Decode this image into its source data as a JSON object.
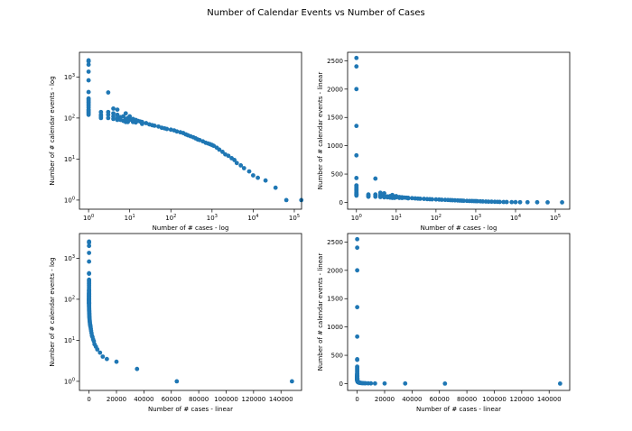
{
  "figure": {
    "title": "Number of Calendar Events  vs Number of Cases"
  },
  "chart_data": [
    {
      "type": "scatter",
      "xscale": "log",
      "yscale": "log",
      "xlabel": "Number of # cases - log",
      "ylabel": "Number of # calendar events - log",
      "xlim": [
        0.6,
        150000
      ],
      "ylim": [
        0.6,
        4000
      ],
      "xticks": [
        {
          "v": 1,
          "b": "10",
          "e": "0"
        },
        {
          "v": 10,
          "b": "10",
          "e": "1"
        },
        {
          "v": 100,
          "b": "10",
          "e": "2"
        },
        {
          "v": 1000,
          "b": "10",
          "e": "3"
        },
        {
          "v": 10000,
          "b": "10",
          "e": "4"
        },
        {
          "v": 100000,
          "b": "10",
          "e": "5"
        }
      ],
      "yticks": [
        {
          "v": 1,
          "b": "10",
          "e": "0"
        },
        {
          "v": 10,
          "b": "10",
          "e": "1"
        },
        {
          "v": 100,
          "b": "10",
          "e": "2"
        },
        {
          "v": 1000,
          "b": "10",
          "e": "3"
        }
      ],
      "points_ref": "points"
    },
    {
      "type": "scatter",
      "xscale": "log",
      "yscale": "linear",
      "xlabel": "Number of # cases - log",
      "ylabel": "Number of # calendar events - linear",
      "xlim": [
        0.6,
        230000
      ],
      "ylim": [
        -120,
        2650
      ],
      "xticks": [
        {
          "v": 1,
          "b": "10",
          "e": "0"
        },
        {
          "v": 10,
          "b": "10",
          "e": "1"
        },
        {
          "v": 100,
          "b": "10",
          "e": "2"
        },
        {
          "v": 1000,
          "b": "10",
          "e": "3"
        },
        {
          "v": 10000,
          "b": "10",
          "e": "4"
        },
        {
          "v": 100000,
          "b": "10",
          "e": "5"
        }
      ],
      "yticks": [
        {
          "v": 0,
          "t": "0"
        },
        {
          "v": 500,
          "t": "500"
        },
        {
          "v": 1000,
          "t": "1000"
        },
        {
          "v": 1500,
          "t": "1500"
        },
        {
          "v": 2000,
          "t": "2000"
        },
        {
          "v": 2500,
          "t": "2500"
        }
      ],
      "points_ref": "points"
    },
    {
      "type": "scatter",
      "xscale": "linear",
      "yscale": "log",
      "xlabel": "Number of # cases - linear",
      "ylabel": "Number of # calendar events - log",
      "xlim": [
        -7000,
        155000
      ],
      "ylim": [
        0.6,
        4000
      ],
      "xticks": [
        {
          "v": 0,
          "t": "0"
        },
        {
          "v": 20000,
          "t": "20000"
        },
        {
          "v": 40000,
          "t": "40000"
        },
        {
          "v": 60000,
          "t": "60000"
        },
        {
          "v": 80000,
          "t": "80000"
        },
        {
          "v": 100000,
          "t": "100000"
        },
        {
          "v": 120000,
          "t": "120000"
        },
        {
          "v": 140000,
          "t": "140000"
        }
      ],
      "yticks": [
        {
          "v": 1,
          "b": "10",
          "e": "0"
        },
        {
          "v": 10,
          "b": "10",
          "e": "1"
        },
        {
          "v": 100,
          "b": "10",
          "e": "2"
        },
        {
          "v": 1000,
          "b": "10",
          "e": "3"
        }
      ],
      "points_ref": "points"
    },
    {
      "type": "scatter",
      "xscale": "linear",
      "yscale": "linear",
      "xlabel": "Number of # cases - linear",
      "ylabel": "Number of # calendar events - linear",
      "xlim": [
        -7000,
        155000
      ],
      "ylim": [
        -120,
        2650
      ],
      "xticks": [
        {
          "v": 0,
          "t": "0"
        },
        {
          "v": 20000,
          "t": "20000"
        },
        {
          "v": 40000,
          "t": "40000"
        },
        {
          "v": 60000,
          "t": "60000"
        },
        {
          "v": 80000,
          "t": "80000"
        },
        {
          "v": 100000,
          "t": "100000"
        },
        {
          "v": 120000,
          "t": "120000"
        },
        {
          "v": 140000,
          "t": "140000"
        }
      ],
      "yticks": [
        {
          "v": 0,
          "t": "0"
        },
        {
          "v": 500,
          "t": "500"
        },
        {
          "v": 1000,
          "t": "1000"
        },
        {
          "v": 1500,
          "t": "1500"
        },
        {
          "v": 2000,
          "t": "2000"
        },
        {
          "v": 2500,
          "t": "2500"
        }
      ],
      "points_ref": "points"
    }
  ],
  "points": [
    [
      1,
      2550
    ],
    [
      1,
      2400
    ],
    [
      1,
      2000
    ],
    [
      1,
      1350
    ],
    [
      1,
      830
    ],
    [
      1,
      430
    ],
    [
      1,
      300
    ],
    [
      1,
      280
    ],
    [
      1,
      260
    ],
    [
      1,
      240
    ],
    [
      1,
      220
    ],
    [
      1,
      200
    ],
    [
      1,
      180
    ],
    [
      1,
      160
    ],
    [
      1,
      150
    ],
    [
      1,
      140
    ],
    [
      1,
      130
    ],
    [
      1,
      120
    ],
    [
      2,
      140
    ],
    [
      2,
      120
    ],
    [
      2,
      110
    ],
    [
      2,
      100
    ],
    [
      3,
      420
    ],
    [
      3,
      140
    ],
    [
      3,
      120
    ],
    [
      3,
      100
    ],
    [
      4,
      170
    ],
    [
      4,
      130
    ],
    [
      4,
      110
    ],
    [
      4,
      95
    ],
    [
      5,
      160
    ],
    [
      5,
      120
    ],
    [
      5,
      100
    ],
    [
      5,
      90
    ],
    [
      6,
      105
    ],
    [
      6,
      90
    ],
    [
      7,
      110
    ],
    [
      7,
      85
    ],
    [
      8,
      130
    ],
    [
      8,
      95
    ],
    [
      8,
      80
    ],
    [
      9,
      100
    ],
    [
      9,
      80
    ],
    [
      10,
      110
    ],
    [
      10,
      90
    ],
    [
      12,
      95
    ],
    [
      12,
      80
    ],
    [
      14,
      90
    ],
    [
      14,
      78
    ],
    [
      16,
      85
    ],
    [
      18,
      82
    ],
    [
      20,
      80
    ],
    [
      20,
      72
    ],
    [
      25,
      75
    ],
    [
      30,
      70
    ],
    [
      35,
      67
    ],
    [
      40,
      65
    ],
    [
      50,
      62
    ],
    [
      60,
      58
    ],
    [
      70,
      56
    ],
    [
      80,
      54
    ],
    [
      100,
      52
    ],
    [
      120,
      50
    ],
    [
      140,
      47
    ],
    [
      170,
      45
    ],
    [
      200,
      43
    ],
    [
      230,
      40
    ],
    [
      260,
      38
    ],
    [
      300,
      36
    ],
    [
      350,
      34
    ],
    [
      400,
      32
    ],
    [
      450,
      30
    ],
    [
      500,
      29
    ],
    [
      600,
      27
    ],
    [
      700,
      25
    ],
    [
      800,
      24
    ],
    [
      900,
      23
    ],
    [
      1000,
      22
    ],
    [
      1100,
      21
    ],
    [
      1300,
      19
    ],
    [
      1500,
      17
    ],
    [
      1800,
      15
    ],
    [
      2100,
      13
    ],
    [
      2500,
      12
    ],
    [
      3000,
      10.5
    ],
    [
      3500,
      9.5
    ],
    [
      4000,
      8
    ],
    [
      5000,
      7
    ],
    [
      6000,
      6
    ],
    [
      8000,
      5
    ],
    [
      10000,
      4
    ],
    [
      13000,
      3.5
    ],
    [
      20000,
      3
    ],
    [
      35000,
      2
    ],
    [
      64000,
      1
    ],
    [
      148000,
      1
    ]
  ]
}
